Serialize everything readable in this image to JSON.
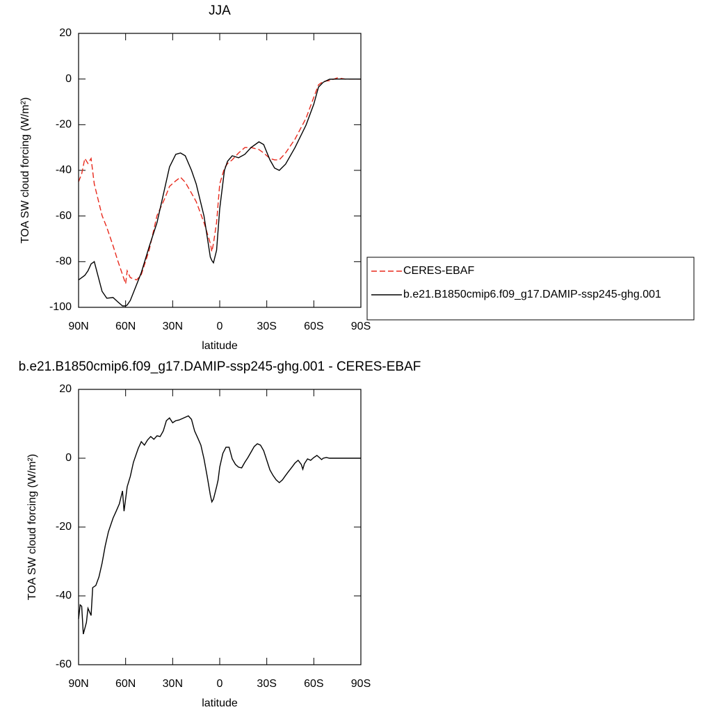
{
  "chart_data": [
    {
      "type": "line",
      "title": "JJA",
      "x_label": "latitude",
      "y_label": "TOA SW cloud forcing (W/m²)",
      "xlim": [
        90,
        -90
      ],
      "ylim": [
        -100,
        20
      ],
      "xticks": [
        {
          "value": 90,
          "label": "90N"
        },
        {
          "value": 60,
          "label": "60N"
        },
        {
          "value": 30,
          "label": "30N"
        },
        0,
        {
          "value": -30,
          "label": "30S"
        },
        {
          "value": -60,
          "label": "60S"
        },
        {
          "value": -90,
          "label": "90S"
        }
      ],
      "yticks": [
        -100,
        -80,
        -60,
        -40,
        -20,
        0,
        20
      ],
      "legend": "right",
      "x": [
        90,
        88,
        86,
        84,
        82,
        80,
        75,
        72,
        68,
        65,
        62,
        60,
        59,
        57,
        53,
        50,
        45,
        40,
        35,
        32,
        28,
        25,
        22,
        18,
        15,
        10,
        6,
        5,
        4,
        2,
        0,
        -3,
        -5,
        -8,
        -12,
        -16,
        -20,
        -25,
        -28,
        -32,
        -35,
        -38,
        -42,
        -48,
        -55,
        -60,
        -63,
        -66,
        -70,
        -75,
        -80,
        -85,
        -90
      ],
      "series": [
        {
          "name": "CERES-EBAF",
          "color": "#e8291c",
          "dash": true,
          "values": [
            -45,
            -41.5,
            -34.8,
            -37,
            -34.8,
            -46,
            -59.8,
            -65,
            -73,
            -79.6,
            -85.7,
            -89.7,
            -84,
            -87,
            -88,
            -85.7,
            -75,
            -59.8,
            -52.2,
            -47,
            -44.6,
            -43,
            -45.2,
            -50,
            -53.7,
            -62.9,
            -72,
            -75.6,
            -72,
            -62.8,
            -46,
            -39,
            -37,
            -35.4,
            -32.4,
            -30,
            -30,
            -30.9,
            -32.4,
            -34.8,
            -35.4,
            -35.4,
            -32.4,
            -26.3,
            -17.2,
            -8,
            -2.5,
            -1,
            -0.7,
            0.5,
            0,
            0,
            0
          ]
        },
        {
          "name": "b.e21.B1850cmip6.f09_g17.DAMIP-ssp245-ghg.001",
          "color": "#000000",
          "dash": false,
          "values": [
            -88,
            -87,
            -86,
            -84,
            -81,
            -80,
            -93,
            -96,
            -95.7,
            -97.6,
            -99.4,
            -99.4,
            -99,
            -97,
            -90,
            -84.8,
            -73.5,
            -62.9,
            -47.6,
            -38.5,
            -33,
            -32.4,
            -33.6,
            -40,
            -46,
            -60,
            -78,
            -79.5,
            -80.5,
            -75,
            -56.8,
            -40,
            -36,
            -33.6,
            -34.5,
            -33,
            -30,
            -27.5,
            -28.7,
            -35.4,
            -39,
            -40,
            -37.3,
            -30,
            -20.2,
            -11,
            -3.5,
            -1.4,
            -0.1,
            0,
            0,
            0,
            0
          ]
        }
      ]
    },
    {
      "type": "line",
      "title": "b.e21.B1850cmip6.f09_g17.DAMIP-ssp245-ghg.001 - CERES-EBAF",
      "x_label": "latitude",
      "y_label": "TOA SW cloud forcing (W/m²)",
      "xlim": [
        90,
        -90
      ],
      "ylim": [
        -60,
        20
      ],
      "xticks": [
        {
          "value": 90,
          "label": "90N"
        },
        {
          "value": 60,
          "label": "60N"
        },
        {
          "value": 30,
          "label": "30N"
        },
        0,
        {
          "value": -30,
          "label": "30S"
        },
        {
          "value": -60,
          "label": "60S"
        },
        {
          "value": -90,
          "label": "90S"
        }
      ],
      "yticks": [
        -60,
        -40,
        -20,
        0,
        20
      ],
      "x": [
        90,
        89,
        88,
        87,
        85,
        84,
        82,
        81,
        79,
        77,
        75,
        73,
        71,
        68,
        66,
        64,
        62,
        61,
        59,
        57,
        55,
        52,
        50,
        48,
        46,
        44,
        42,
        40,
        38,
        36,
        34,
        32,
        30,
        28,
        26,
        24,
        22,
        20,
        18,
        16,
        14,
        12,
        10,
        8,
        6,
        5,
        4,
        2,
        1,
        0,
        -2,
        -4,
        -6,
        -8,
        -10,
        -12,
        -14,
        -16,
        -18,
        -20,
        -22,
        -24,
        -26,
        -28,
        -30,
        -32,
        -34,
        -36,
        -38,
        -40,
        -42,
        -44,
        -46,
        -48,
        -50,
        -52,
        -53,
        -54,
        -56,
        -58,
        -60,
        -62,
        -64,
        -65,
        -66,
        -68,
        -70,
        -75,
        -80,
        -90
      ],
      "series": [
        {
          "color": "#000000",
          "dash": false,
          "values": [
            -46.7,
            -42.6,
            -43,
            -51.1,
            -47.7,
            -43.6,
            -45.7,
            -37.6,
            -37,
            -34.5,
            -30.5,
            -25.5,
            -21.4,
            -17.4,
            -15.4,
            -13.3,
            -9.5,
            -15.4,
            -8.3,
            -5.3,
            -1.2,
            2.8,
            4.8,
            3.8,
            5.3,
            6.3,
            5.5,
            6.5,
            6.3,
            7.9,
            10.9,
            11.7,
            10.3,
            10.9,
            11.1,
            11.5,
            11.9,
            12.3,
            11.3,
            7.9,
            5.9,
            3.8,
            -0.2,
            -5.3,
            -10.7,
            -12.7,
            -11.9,
            -8.3,
            -6.3,
            -2.6,
            1.4,
            3.2,
            3.2,
            -0.2,
            -1.8,
            -2.6,
            -2.8,
            -1.2,
            0.2,
            1.8,
            3.4,
            4.2,
            3.8,
            2.2,
            -0.6,
            -3.4,
            -5,
            -6.3,
            -7.1,
            -6.3,
            -5,
            -3.8,
            -2.6,
            -1.4,
            -0.6,
            -1.8,
            -3.2,
            -1.6,
            -0.2,
            -0.6,
            0.2,
            0.8,
            0,
            -0.4,
            0,
            0.2,
            0,
            0,
            0,
            0
          ]
        }
      ]
    }
  ]
}
